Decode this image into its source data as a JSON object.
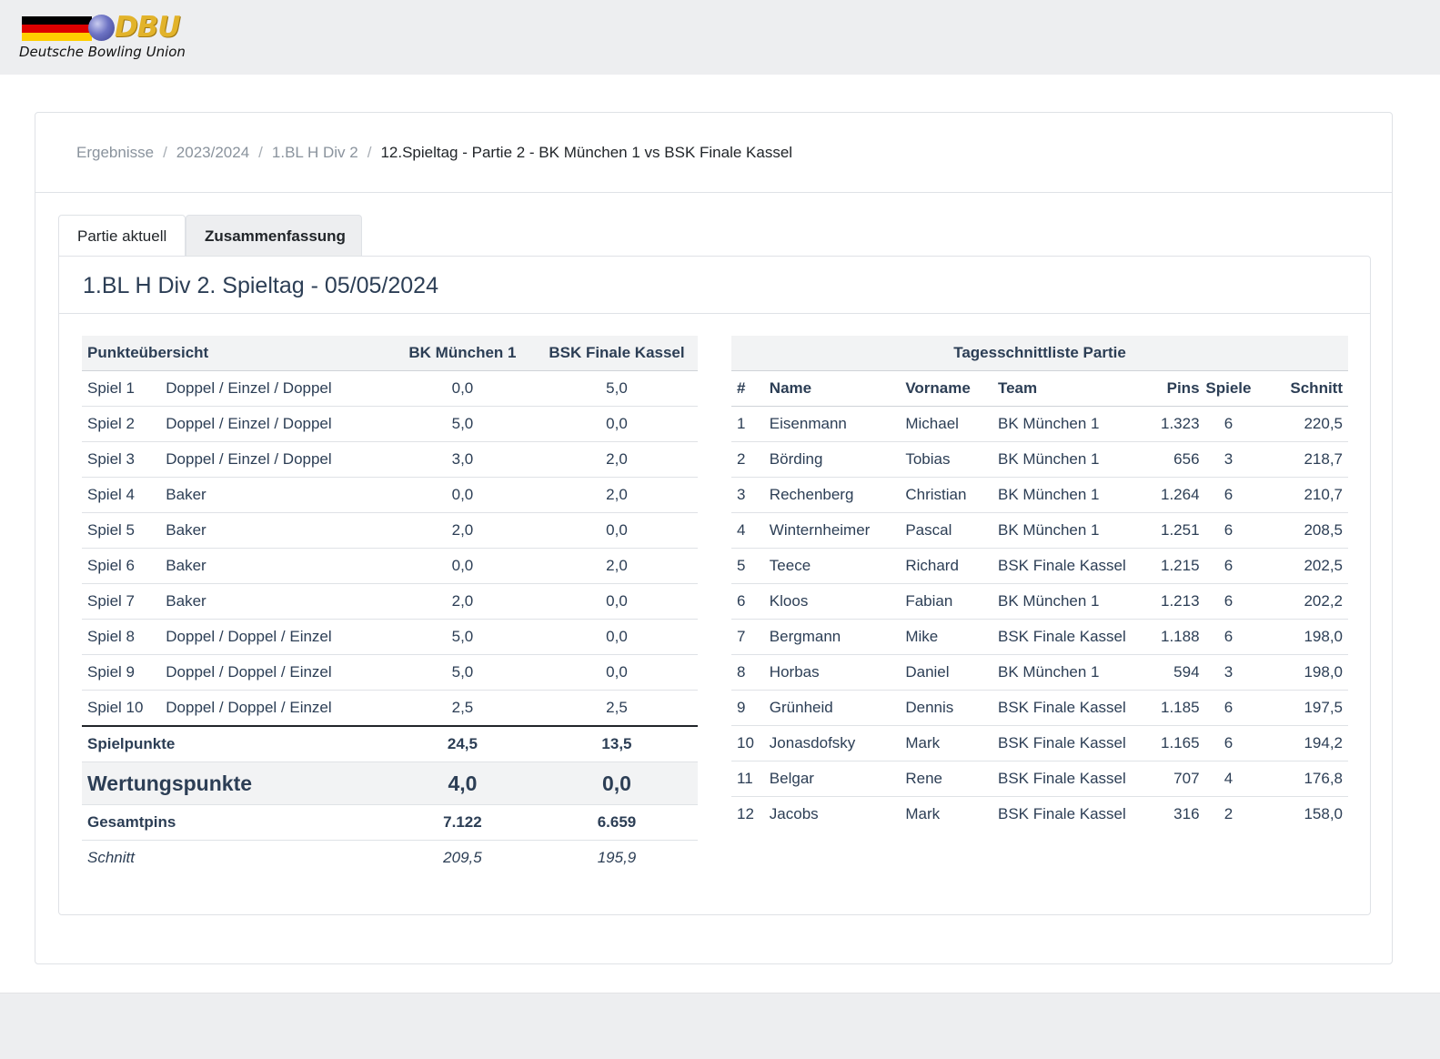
{
  "header": {
    "logo_mark": "DBU",
    "logo_text": "Deutsche Bowling Union",
    "flag_colors": [
      "#000000",
      "#dd0000",
      "#ffce00"
    ]
  },
  "breadcrumb": [
    {
      "label": "Ergebnisse"
    },
    {
      "label": "2023/2024"
    },
    {
      "label": "1.BL H Div 2"
    },
    {
      "label": "12.Spieltag - Partie 2 - BK München 1 vs BSK Finale Kassel"
    }
  ],
  "tabs": [
    {
      "label": "Partie aktuell",
      "active": false
    },
    {
      "label": "Zusammenfassung",
      "active": true
    }
  ],
  "panel_title": "1.BL H Div 2. Spieltag - 05/05/2024",
  "points": {
    "header": {
      "title": "Punkteübersicht",
      "team_a": "BK München 1",
      "team_b": "BSK Finale Kassel"
    },
    "rows": [
      {
        "spiel": "Spiel 1",
        "mode": "Doppel / Einzel / Doppel",
        "a": "0,0",
        "b": "5,0"
      },
      {
        "spiel": "Spiel 2",
        "mode": "Doppel / Einzel / Doppel",
        "a": "5,0",
        "b": "0,0"
      },
      {
        "spiel": "Spiel 3",
        "mode": "Doppel / Einzel / Doppel",
        "a": "3,0",
        "b": "2,0"
      },
      {
        "spiel": "Spiel 4",
        "mode": "Baker",
        "a": "0,0",
        "b": "2,0"
      },
      {
        "spiel": "Spiel 5",
        "mode": "Baker",
        "a": "2,0",
        "b": "0,0"
      },
      {
        "spiel": "Spiel 6",
        "mode": "Baker",
        "a": "0,0",
        "b": "2,0"
      },
      {
        "spiel": "Spiel 7",
        "mode": "Baker",
        "a": "2,0",
        "b": "0,0"
      },
      {
        "spiel": "Spiel 8",
        "mode": "Doppel / Doppel / Einzel",
        "a": "5,0",
        "b": "0,0"
      },
      {
        "spiel": "Spiel 9",
        "mode": "Doppel / Doppel / Einzel",
        "a": "5,0",
        "b": "0,0"
      },
      {
        "spiel": "Spiel 10",
        "mode": "Doppel / Doppel / Einzel",
        "a": "2,5",
        "b": "2,5"
      }
    ],
    "spielpunkte": {
      "label": "Spielpunkte",
      "a": "24,5",
      "b": "13,5"
    },
    "wertungspunkte": {
      "label": "Wertungspunkte",
      "a": "4,0",
      "b": "0,0"
    },
    "gesamtpins": {
      "label": "Gesamtpins",
      "a": "7.122",
      "b": "6.659"
    },
    "schnitt": {
      "label": "Schnitt",
      "a": "209,5",
      "b": "195,9"
    }
  },
  "ranking": {
    "title": "Tagesschnittliste Partie",
    "columns": {
      "rank": "#",
      "name": "Name",
      "vorname": "Vorname",
      "team": "Team",
      "pins": "Pins",
      "spiele": "Spiele",
      "schnitt": "Schnitt"
    },
    "rows": [
      {
        "rank": "1",
        "name": "Eisenmann",
        "vorname": "Michael",
        "team": "BK München 1",
        "pins": "1.323",
        "spiele": "6",
        "schnitt": "220,5"
      },
      {
        "rank": "2",
        "name": "Börding",
        "vorname": "Tobias",
        "team": "BK München 1",
        "pins": "656",
        "spiele": "3",
        "schnitt": "218,7"
      },
      {
        "rank": "3",
        "name": "Rechenberg",
        "vorname": "Christian",
        "team": "BK München 1",
        "pins": "1.264",
        "spiele": "6",
        "schnitt": "210,7"
      },
      {
        "rank": "4",
        "name": "Winternheimer",
        "vorname": "Pascal",
        "team": "BK München 1",
        "pins": "1.251",
        "spiele": "6",
        "schnitt": "208,5"
      },
      {
        "rank": "5",
        "name": "Teece",
        "vorname": "Richard",
        "team": "BSK Finale Kassel",
        "pins": "1.215",
        "spiele": "6",
        "schnitt": "202,5"
      },
      {
        "rank": "6",
        "name": "Kloos",
        "vorname": "Fabian",
        "team": "BK München 1",
        "pins": "1.213",
        "spiele": "6",
        "schnitt": "202,2"
      },
      {
        "rank": "7",
        "name": "Bergmann",
        "vorname": "Mike",
        "team": "BSK Finale Kassel",
        "pins": "1.188",
        "spiele": "6",
        "schnitt": "198,0"
      },
      {
        "rank": "8",
        "name": "Horbas",
        "vorname": "Daniel",
        "team": "BK München 1",
        "pins": "594",
        "spiele": "3",
        "schnitt": "198,0"
      },
      {
        "rank": "9",
        "name": "Grünheid",
        "vorname": "Dennis",
        "team": "BSK Finale Kassel",
        "pins": "1.185",
        "spiele": "6",
        "schnitt": "197,5"
      },
      {
        "rank": "10",
        "name": "Jonasdofsky",
        "vorname": "Mark",
        "team": "BSK Finale Kassel",
        "pins": "1.165",
        "spiele": "6",
        "schnitt": "194,2"
      },
      {
        "rank": "11",
        "name": "Belgar",
        "vorname": "Rene",
        "team": "BSK Finale Kassel",
        "pins": "707",
        "spiele": "4",
        "schnitt": "176,8"
      },
      {
        "rank": "12",
        "name": "Jacobs",
        "vorname": "Mark",
        "team": "BSK Finale Kassel",
        "pins": "316",
        "spiele": "2",
        "schnitt": "158,0"
      }
    ]
  }
}
